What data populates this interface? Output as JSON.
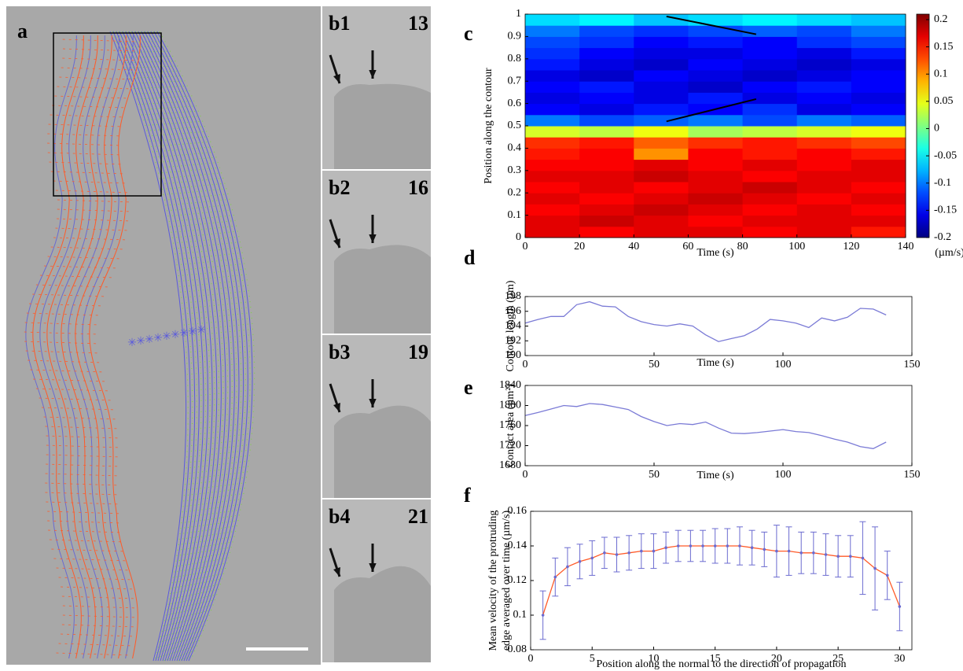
{
  "figure": {
    "panel_a": {
      "label": "a"
    },
    "panels_b": [
      {
        "label": "b1",
        "frame": "13"
      },
      {
        "label": "b2",
        "frame": "16"
      },
      {
        "label": "b3",
        "frame": "19"
      },
      {
        "label": "b4",
        "frame": "21"
      }
    ]
  },
  "chart_data": [
    {
      "type": "heatmap",
      "label": "c",
      "xlabel": "Time (s)",
      "ylabel": "Position along the contour",
      "zlabel": "(µm/s)",
      "xbins": [
        0,
        20,
        40,
        60,
        80,
        100,
        120,
        140
      ],
      "ybins": [
        0,
        0.05,
        0.1,
        0.15,
        0.2,
        0.25,
        0.3,
        0.35,
        0.4,
        0.45,
        0.5,
        0.55,
        0.6,
        0.65,
        0.7,
        0.75,
        0.8,
        0.85,
        0.9,
        0.95,
        1
      ],
      "z": [
        [
          0.17,
          0.16,
          0.17,
          0.17,
          0.16,
          0.17,
          0.15
        ],
        [
          0.17,
          0.18,
          0.17,
          0.16,
          0.17,
          0.17,
          0.17
        ],
        [
          0.16,
          0.17,
          0.18,
          0.17,
          0.16,
          0.17,
          0.16
        ],
        [
          0.17,
          0.16,
          0.17,
          0.18,
          0.17,
          0.16,
          0.17
        ],
        [
          0.16,
          0.17,
          0.16,
          0.17,
          0.18,
          0.17,
          0.16
        ],
        [
          0.17,
          0.17,
          0.18,
          0.17,
          0.16,
          0.17,
          0.17
        ],
        [
          0.16,
          0.16,
          0.17,
          0.16,
          0.17,
          0.16,
          0.17
        ],
        [
          0.15,
          0.16,
          0.1,
          0.16,
          0.15,
          0.16,
          0.15
        ],
        [
          0.14,
          0.15,
          0.12,
          0.14,
          0.15,
          0.14,
          0.13
        ],
        [
          0.04,
          0.03,
          0.05,
          0.02,
          0.03,
          0.04,
          0.05
        ],
        [
          -0.1,
          -0.12,
          -0.11,
          -0.1,
          -0.12,
          -0.1,
          -0.11
        ],
        [
          -0.15,
          -0.16,
          -0.14,
          -0.15,
          -0.13,
          -0.16,
          -0.15
        ],
        [
          -0.16,
          -0.15,
          -0.16,
          -0.14,
          -0.16,
          -0.15,
          -0.16
        ],
        [
          -0.15,
          -0.14,
          -0.16,
          -0.17,
          -0.15,
          -0.14,
          -0.15
        ],
        [
          -0.16,
          -0.17,
          -0.15,
          -0.16,
          -0.17,
          -0.16,
          -0.15
        ],
        [
          -0.14,
          -0.16,
          -0.17,
          -0.15,
          -0.16,
          -0.17,
          -0.16
        ],
        [
          -0.13,
          -0.15,
          -0.16,
          -0.16,
          -0.15,
          -0.16,
          -0.14
        ],
        [
          -0.12,
          -0.13,
          -0.15,
          -0.14,
          -0.15,
          -0.13,
          -0.12
        ],
        [
          -0.1,
          -0.12,
          -0.13,
          -0.12,
          -0.11,
          -0.12,
          -0.1
        ],
        [
          -0.06,
          -0.05,
          -0.07,
          -0.06,
          -0.05,
          -0.06,
          -0.07
        ]
      ],
      "lines": [
        {
          "x": [
            52,
            85
          ],
          "y": [
            0.99,
            0.91
          ]
        },
        {
          "x": [
            52,
            85
          ],
          "y": [
            0.52,
            0.62
          ]
        }
      ],
      "xlim": [
        0,
        140
      ],
      "xticks": [
        0,
        20,
        40,
        60,
        80,
        100,
        120,
        140
      ],
      "ylim": [
        0,
        1
      ],
      "yticks": [
        0,
        0.1,
        0.2,
        0.3,
        0.4,
        0.5,
        0.6,
        0.7,
        0.8,
        0.9,
        1
      ],
      "zlim": [
        -0.2,
        0.21
      ],
      "zticks": [
        -0.2,
        -0.15,
        -0.1,
        -0.05,
        0,
        0.05,
        0.1,
        0.15,
        0.2
      ],
      "colormap": "jet"
    },
    {
      "type": "line",
      "label": "d",
      "xlabel": "Time (s)",
      "ylabel": "Contour length (µm)",
      "x": [
        0,
        5,
        10,
        15,
        20,
        25,
        30,
        35,
        40,
        45,
        50,
        55,
        60,
        65,
        70,
        75,
        80,
        85,
        90,
        95,
        100,
        105,
        110,
        115,
        120,
        125,
        130,
        135,
        140
      ],
      "series": [
        {
          "color": "#7b7bd6",
          "values": [
            194.4,
            194.9,
            195.3,
            195.3,
            196.9,
            197.3,
            196.7,
            196.6,
            195.3,
            194.6,
            194.2,
            194.0,
            194.3,
            194.0,
            192.8,
            191.9,
            192.3,
            192.7,
            193.6,
            194.9,
            194.7,
            194.4,
            193.8,
            195.1,
            194.7,
            195.2,
            196.4,
            196.3,
            195.5
          ]
        }
      ],
      "xlim": [
        0,
        150
      ],
      "xticks": [
        0,
        50,
        100,
        150
      ],
      "ylim": [
        190,
        198
      ],
      "yticks": [
        190,
        192,
        194,
        196,
        198
      ]
    },
    {
      "type": "line",
      "label": "e",
      "xlabel": "Time (s)",
      "ylabel": "Contact area (µm²)",
      "x": [
        0,
        5,
        10,
        15,
        20,
        25,
        30,
        35,
        40,
        45,
        50,
        55,
        60,
        65,
        70,
        75,
        80,
        85,
        90,
        95,
        100,
        105,
        110,
        115,
        120,
        125,
        130,
        135,
        140
      ],
      "series": [
        {
          "color": "#7b7bd6",
          "values": [
            1780,
            1786,
            1793,
            1800,
            1798,
            1804,
            1802,
            1797,
            1792,
            1778,
            1768,
            1760,
            1764,
            1762,
            1767,
            1755,
            1745,
            1744,
            1746,
            1749,
            1752,
            1748,
            1746,
            1740,
            1733,
            1727,
            1718,
            1714,
            1727
          ]
        }
      ],
      "xlim": [
        0,
        150
      ],
      "xticks": [
        0,
        50,
        100,
        150
      ],
      "ylim": [
        1680,
        1840
      ],
      "yticks": [
        1680,
        1720,
        1760,
        1800,
        1840
      ]
    },
    {
      "type": "errorbar",
      "label": "f",
      "xlabel": "Position along the normal to the direction of propagation",
      "ylabel": [
        "Mean velocity of the protruding",
        "edge averaged over time (µm/s)"
      ],
      "x": [
        1,
        2,
        3,
        4,
        5,
        6,
        7,
        8,
        9,
        10,
        11,
        12,
        13,
        14,
        15,
        16,
        17,
        18,
        19,
        20,
        21,
        22,
        23,
        24,
        25,
        26,
        27,
        28,
        29,
        30
      ],
      "series": [
        {
          "color": "#ff5a28",
          "error_color": "#6b6bd0",
          "values": [
            0.1,
            0.122,
            0.128,
            0.131,
            0.133,
            0.136,
            0.135,
            0.136,
            0.137,
            0.137,
            0.139,
            0.14,
            0.14,
            0.14,
            0.14,
            0.14,
            0.14,
            0.139,
            0.138,
            0.137,
            0.137,
            0.136,
            0.136,
            0.135,
            0.134,
            0.134,
            0.133,
            0.127,
            0.123,
            0.105
          ],
          "errors": [
            0.014,
            0.011,
            0.011,
            0.01,
            0.01,
            0.009,
            0.01,
            0.01,
            0.01,
            0.01,
            0.009,
            0.009,
            0.009,
            0.009,
            0.01,
            0.01,
            0.011,
            0.01,
            0.01,
            0.015,
            0.014,
            0.012,
            0.012,
            0.012,
            0.012,
            0.012,
            0.021,
            0.024,
            0.014,
            0.014
          ]
        }
      ],
      "xlim": [
        0,
        31
      ],
      "xticks": [
        0,
        5,
        10,
        15,
        20,
        25,
        30
      ],
      "ylim": [
        0.08,
        0.16
      ],
      "yticks": [
        0.08,
        0.1,
        0.12,
        0.14,
        0.16
      ]
    }
  ]
}
